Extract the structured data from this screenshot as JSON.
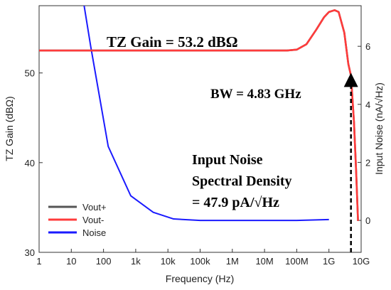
{
  "chart_data": {
    "type": "line",
    "xlabel": "Frequency (Hz)",
    "ylabel_left": "TZ Gain (dBΩ)",
    "ylabel_right": "Input Noise (nA/√Hz)",
    "x_scale": "log",
    "xlim": [
      1,
      10000000000
    ],
    "ylim_left": [
      30,
      57.5
    ],
    "ylim_right": [
      -1.1,
      7.4
    ],
    "x_ticks": [
      {
        "value": 1,
        "label": "1"
      },
      {
        "value": 10,
        "label": "10"
      },
      {
        "value": 100,
        "label": "100"
      },
      {
        "value": 1000,
        "label": "1k"
      },
      {
        "value": 10000,
        "label": "10k"
      },
      {
        "value": 100000,
        "label": "100k"
      },
      {
        "value": 1000000,
        "label": "1M"
      },
      {
        "value": 10000000,
        "label": "10M"
      },
      {
        "value": 100000000,
        "label": "100M"
      },
      {
        "value": 1000000000,
        "label": "1G"
      },
      {
        "value": 10000000000,
        "label": "10G"
      }
    ],
    "y_left_ticks": [
      {
        "value": 30,
        "label": "30"
      },
      {
        "value": 40,
        "label": "40"
      },
      {
        "value": 50,
        "label": "50"
      }
    ],
    "y_right_ticks": [
      {
        "value": 0,
        "label": "0"
      },
      {
        "value": 2,
        "label": "2"
      },
      {
        "value": 4,
        "label": "4"
      },
      {
        "value": 6,
        "label": "6"
      }
    ],
    "legend": {
      "placement": "bottom-left"
    },
    "series": [
      {
        "name": "Vout+",
        "axis": "left",
        "color": "#555555",
        "points": [
          [
            1,
            52.5
          ],
          [
            1000000,
            52.5
          ],
          [
            50000000,
            52.5
          ],
          [
            100000000,
            52.6
          ],
          [
            200000000,
            53.2
          ],
          [
            400000000,
            54.8
          ],
          [
            700000000,
            56.2
          ],
          [
            1000000000,
            56.8
          ],
          [
            1500000000,
            57.0
          ],
          [
            2000000000,
            56.8
          ],
          [
            3000000000,
            54.5
          ],
          [
            4000000000,
            51.0
          ],
          [
            4830000000,
            49.7
          ],
          [
            6000000000,
            44.5
          ],
          [
            7000000000,
            39.0
          ],
          [
            8000000000,
            33.5
          ]
        ]
      },
      {
        "name": "Vout-",
        "axis": "left",
        "color": "#ff3b3b",
        "points": [
          [
            1,
            52.5
          ],
          [
            1000000,
            52.5
          ],
          [
            50000000,
            52.5
          ],
          [
            100000000,
            52.6
          ],
          [
            200000000,
            53.2
          ],
          [
            400000000,
            54.8
          ],
          [
            700000000,
            56.2
          ],
          [
            1000000000,
            56.8
          ],
          [
            1500000000,
            57.0
          ],
          [
            2000000000,
            56.8
          ],
          [
            3000000000,
            54.5
          ],
          [
            4000000000,
            51.0
          ],
          [
            4830000000,
            49.7
          ],
          [
            6000000000,
            44.5
          ],
          [
            7000000000,
            39.0
          ],
          [
            8000000000,
            33.5
          ]
        ]
      },
      {
        "name": "Noise",
        "axis": "right",
        "color": "#1a1aff",
        "points": [
          [
            25,
            7.4
          ],
          [
            40,
            6.0
          ],
          [
            140,
            2.55
          ],
          [
            700,
            0.85
          ],
          [
            3500,
            0.28
          ],
          [
            15000,
            0.05
          ],
          [
            100000,
            0.0
          ],
          [
            1000000,
            0.0
          ],
          [
            10000000,
            0.0
          ],
          [
            100000000,
            0.0
          ],
          [
            1000000000,
            0.03
          ]
        ]
      }
    ],
    "annotations": {
      "gain": "TZ Gain = 53.2 dBΩ",
      "bw": "BW = 4.83 GHz",
      "bw_freq": 4830000000,
      "noise_line1": "Input Noise",
      "noise_line2": "Spectral Density",
      "noise_line3": "= 47.9 pA/√Hz"
    }
  }
}
